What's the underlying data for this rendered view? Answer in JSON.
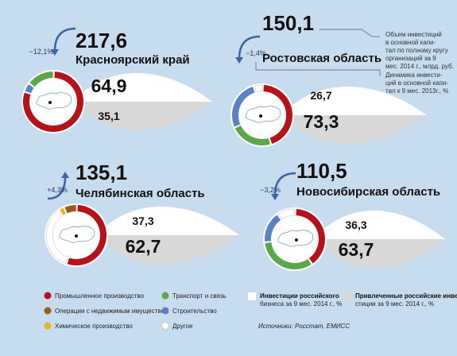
{
  "chart_data": {
    "type": "pie",
    "panels": [
      {
        "region": "Красноярский край",
        "total": "217,6",
        "change": "−12,1%",
        "trend": "down",
        "own_share": "64,9",
        "attracted_share": "35,1",
        "donut": [
          {
            "sector": "industry",
            "value": 80
          },
          {
            "sector": "construction",
            "value": 5
          },
          {
            "sector": "transport",
            "value": 15
          }
        ]
      },
      {
        "region": "Ростовская область",
        "total": "150,1",
        "change": "−1,4%",
        "trend": "down",
        "own_share": "26,7",
        "attracted_share": "73,3",
        "donut": [
          {
            "sector": "industry",
            "value": 45
          },
          {
            "sector": "transport",
            "value": 23
          },
          {
            "sector": "construction",
            "value": 27
          },
          {
            "sector": "other",
            "value": 5
          }
        ]
      },
      {
        "region": "Челябинская область",
        "total": "135,1",
        "change": "+4,3%",
        "trend": "up",
        "own_share": "37,3",
        "attracted_share": "62,7",
        "donut": [
          {
            "sector": "industry",
            "value": 55
          },
          {
            "sector": "other",
            "value": 35
          },
          {
            "sector": "chemical",
            "value": 3
          },
          {
            "sector": "real_estate",
            "value": 7
          }
        ]
      },
      {
        "region": "Новосибирская область",
        "total": "110,5",
        "change": "−3,2%",
        "trend": "down",
        "own_share": "36,3",
        "attracted_share": "63,7",
        "donut": [
          {
            "sector": "industry",
            "value": 40
          },
          {
            "sector": "transport",
            "value": 33
          },
          {
            "sector": "construction",
            "value": 17
          },
          {
            "sector": "other",
            "value": 10
          }
        ]
      }
    ]
  },
  "annotations": {
    "total_note": [
      "Объем инвестиций",
      "в основной капи-",
      "тал по полному кругу",
      "организаций за 9",
      "мес. 2014 г., млрд. руб."
    ],
    "change_note": [
      "Динамика инвести-",
      "ций в основной капи-",
      "тал к 9 мес. 2013г., %"
    ]
  },
  "legend": {
    "sectors": [
      {
        "key": "industry",
        "label": "Промышленное производство",
        "color": "#b5121b"
      },
      {
        "key": "transport",
        "label": "Транспорт и связь",
        "color": "#5aa84a"
      },
      {
        "key": "real_estate",
        "label": "Операции с недвижимым имуществом",
        "color": "#9c5a1c"
      },
      {
        "key": "construction",
        "label": "Строительство",
        "color": "#5b82c4"
      },
      {
        "key": "chemical",
        "label": "Химическое производство",
        "color": "#e7b41f"
      },
      {
        "key": "other",
        "label": "Другое",
        "color": "#ffffff"
      }
    ],
    "own_label": [
      "Инвестиции российского",
      "бизнеса за 9 мес. 2014 г., %"
    ],
    "attracted_label": [
      "Привлеченные российские инве-",
      "стиции за 9 мес. 2014 г., %"
    ]
  },
  "source": "Источники: Росстат, ЕМИСС",
  "colors": {
    "background": "#c8dcef",
    "lens_top": "#ffffff",
    "lens_bottom": "#d8d8d8",
    "arrow": "#3a64a8"
  }
}
